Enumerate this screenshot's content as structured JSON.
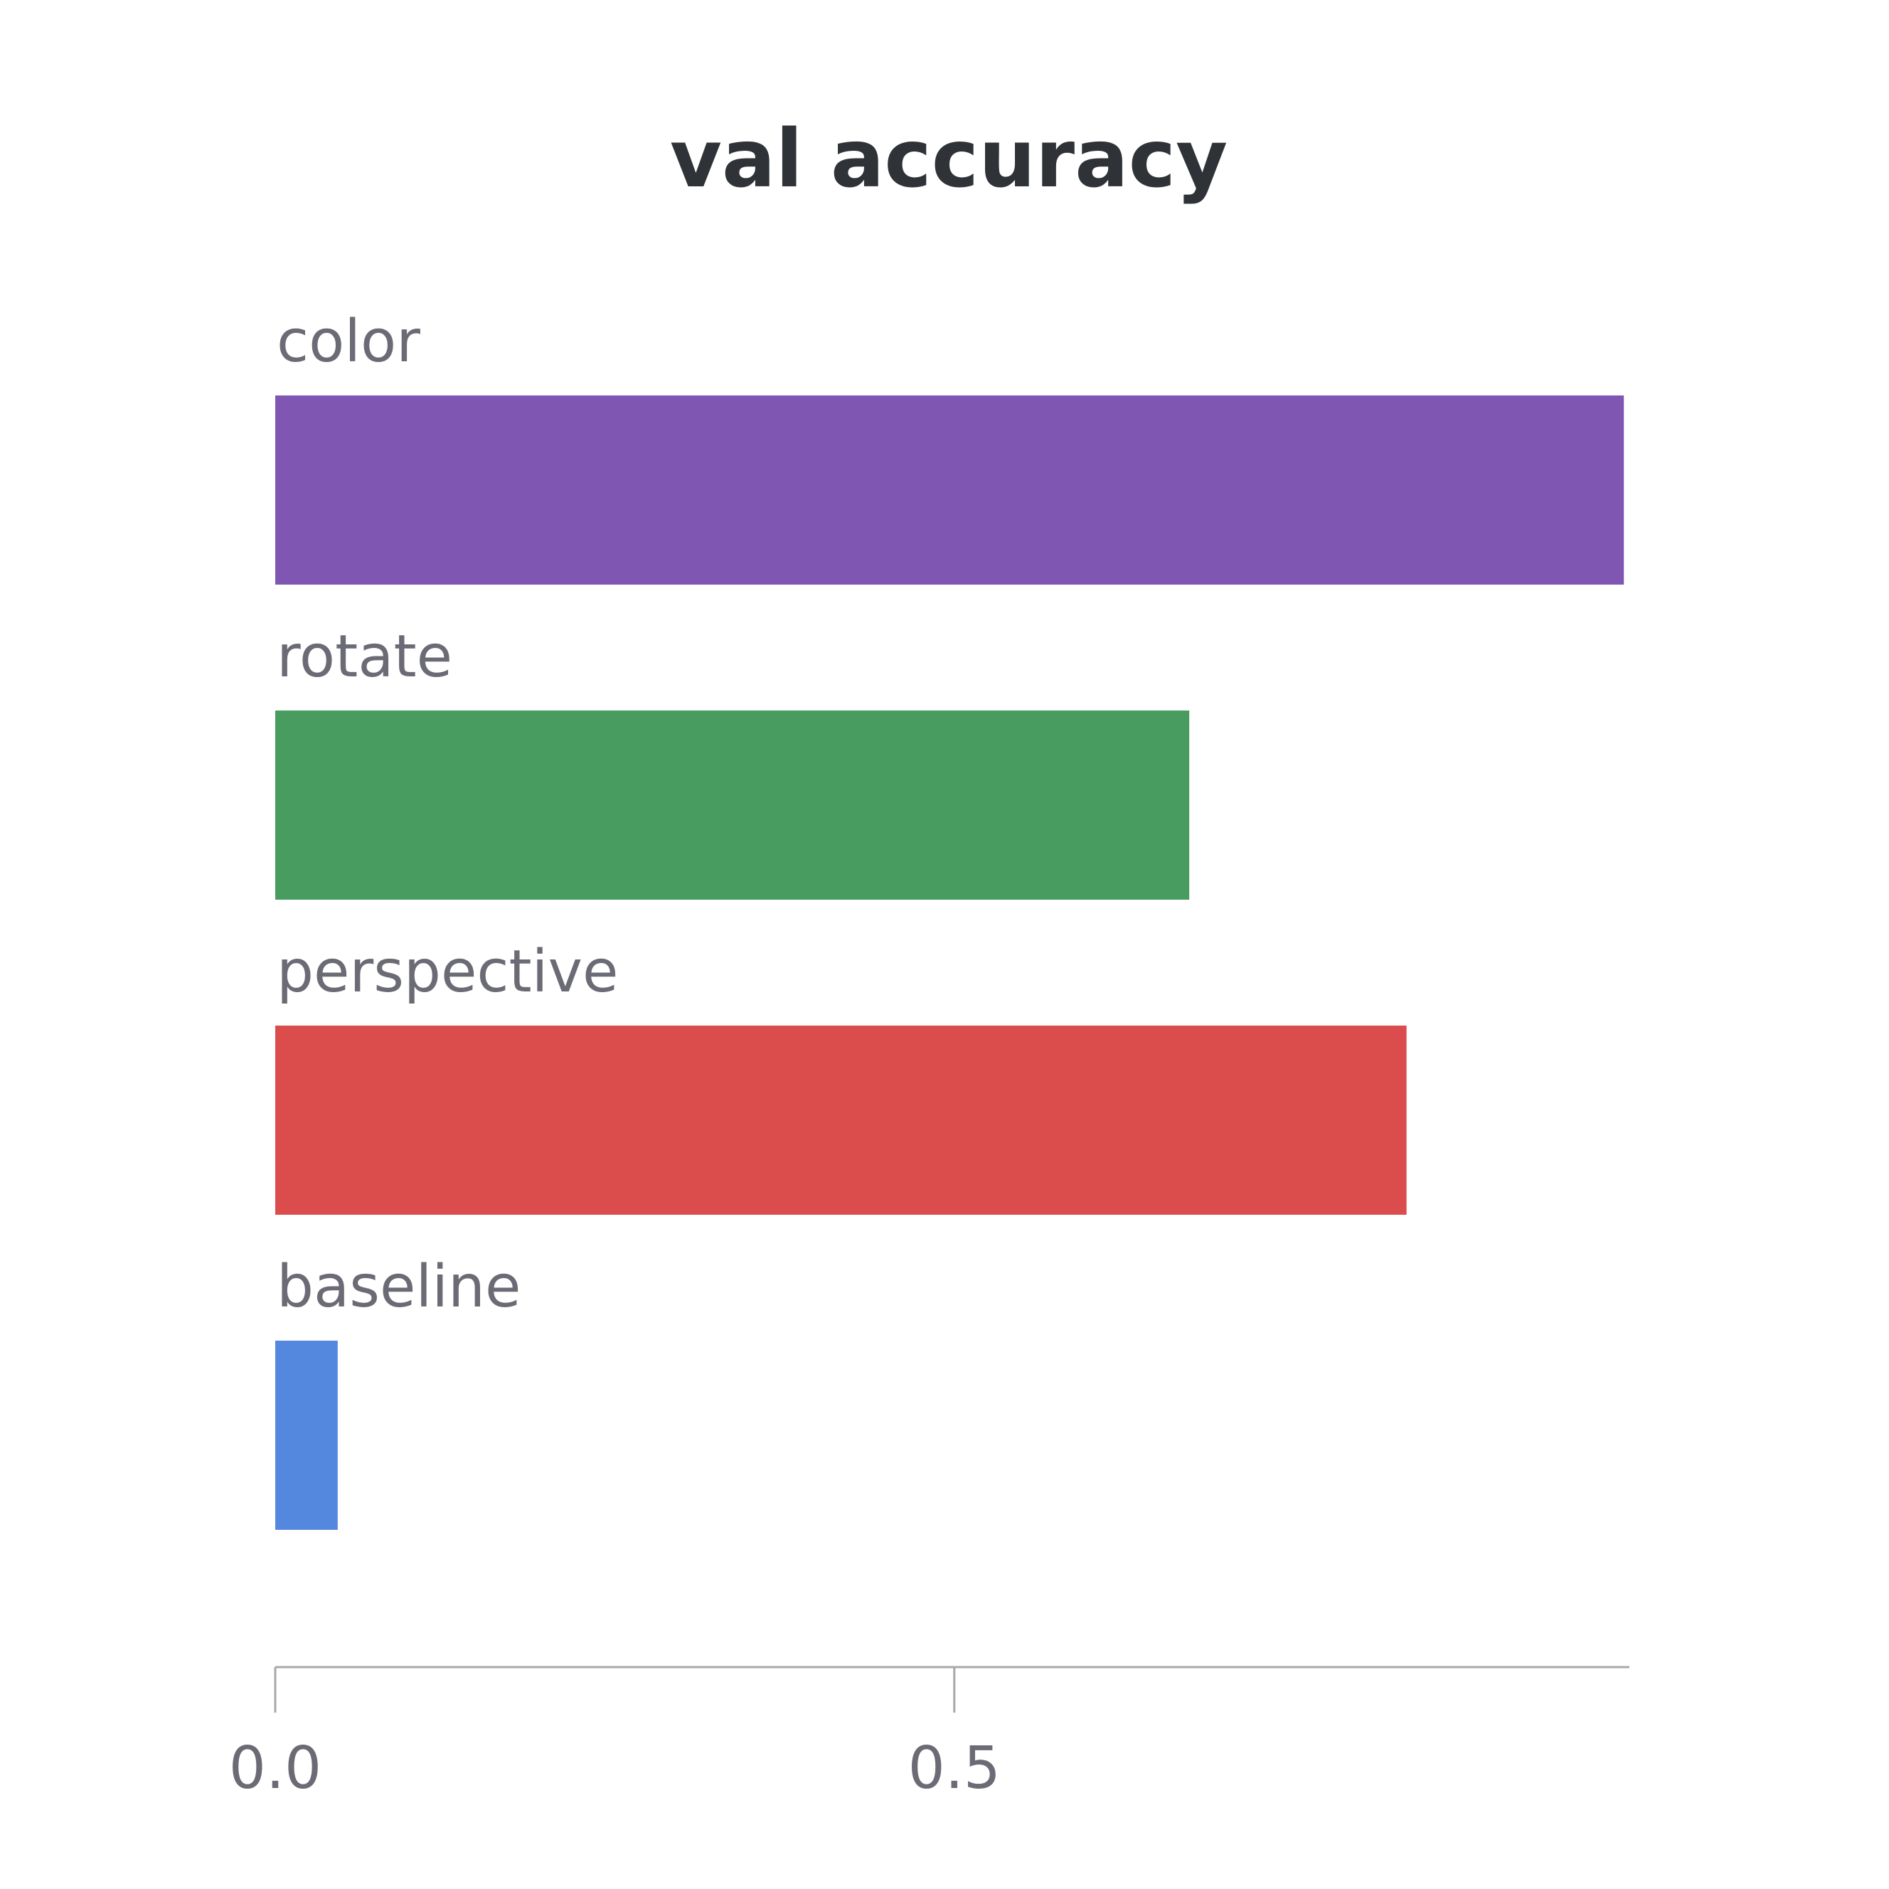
{
  "chart_data": {
    "type": "bar",
    "orientation": "horizontal",
    "title": "val accuracy",
    "xlabel": "",
    "ylabel": "",
    "categories": [
      "color",
      "rotate",
      "perspective",
      "baseline"
    ],
    "values": [
      0.993,
      0.673,
      0.833,
      0.046
    ],
    "colors": [
      "#7f56b2",
      "#489c5f",
      "#db4d4c",
      "#5488de"
    ],
    "xlim": [
      0,
      0.995
    ],
    "xticks": [
      {
        "value": 0.0,
        "label": "0.0"
      },
      {
        "value": 0.5,
        "label": "0.5"
      }
    ],
    "grid": false,
    "legend": "none"
  }
}
